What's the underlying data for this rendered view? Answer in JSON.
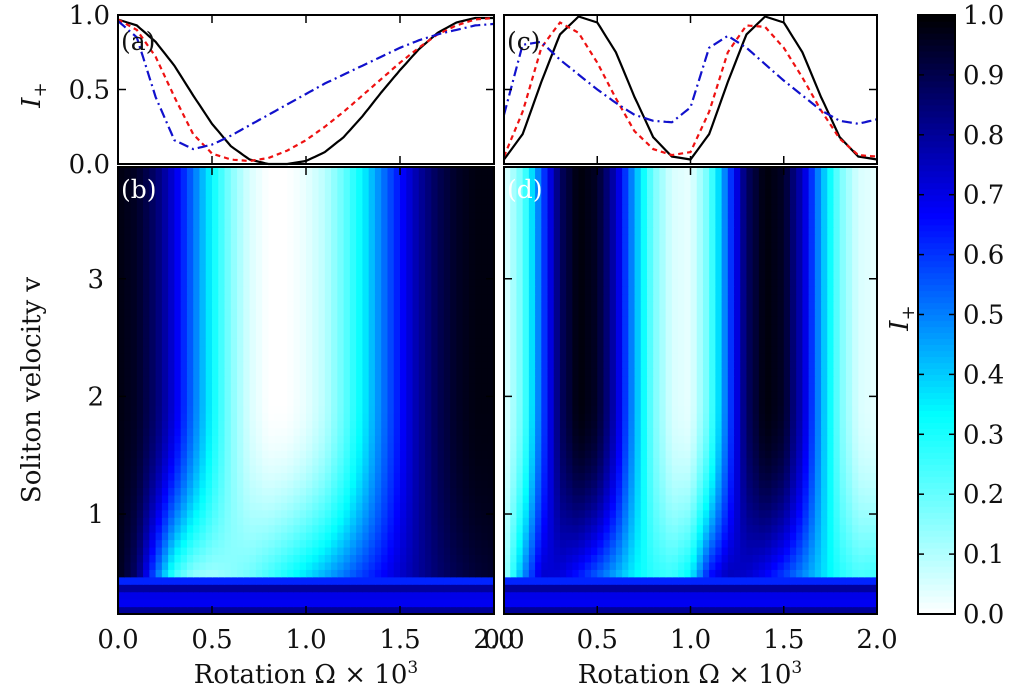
{
  "chart_data": [
    {
      "panel": "a",
      "type": "line",
      "panel_label": "(a)",
      "ylabel_main": "I",
      "ylabel_sub": "+",
      "xlim": [
        0,
        2
      ],
      "ylim": [
        0,
        1
      ],
      "yticks": [
        "0.0",
        "0.5",
        "1.0"
      ],
      "x": [
        0.0,
        0.1,
        0.2,
        0.3,
        0.4,
        0.5,
        0.6,
        0.7,
        0.8,
        0.9,
        1.0,
        1.1,
        1.2,
        1.3,
        1.4,
        1.5,
        1.6,
        1.7,
        1.8,
        1.9,
        2.0
      ],
      "series": [
        {
          "style": "solid",
          "color": "#000000",
          "values": [
            0.97,
            0.93,
            0.82,
            0.66,
            0.46,
            0.27,
            0.12,
            0.03,
            0.0,
            0.0,
            0.02,
            0.08,
            0.18,
            0.32,
            0.48,
            0.63,
            0.77,
            0.88,
            0.95,
            0.98,
            0.98
          ]
        },
        {
          "style": "dashed",
          "color": "#ee1111",
          "values": [
            0.97,
            0.9,
            0.72,
            0.45,
            0.2,
            0.07,
            0.03,
            0.02,
            0.04,
            0.09,
            0.16,
            0.25,
            0.35,
            0.46,
            0.57,
            0.68,
            0.78,
            0.87,
            0.93,
            0.97,
            0.98
          ]
        },
        {
          "style": "dashdot",
          "color": "#1111cc",
          "values": [
            0.96,
            0.85,
            0.45,
            0.16,
            0.1,
            0.13,
            0.19,
            0.26,
            0.33,
            0.4,
            0.47,
            0.54,
            0.6,
            0.66,
            0.72,
            0.78,
            0.83,
            0.87,
            0.9,
            0.93,
            0.94
          ]
        }
      ]
    },
    {
      "panel": "c",
      "type": "line",
      "panel_label": "(c)",
      "xlim": [
        0,
        2
      ],
      "ylim": [
        0,
        1
      ],
      "x": [
        0.0,
        0.1,
        0.2,
        0.3,
        0.4,
        0.5,
        0.6,
        0.7,
        0.8,
        0.9,
        1.0,
        1.1,
        1.2,
        1.3,
        1.4,
        1.5,
        1.6,
        1.7,
        1.8,
        1.9,
        2.0
      ],
      "series": [
        {
          "style": "solid",
          "color": "#000000",
          "values": [
            0.03,
            0.2,
            0.55,
            0.87,
            0.99,
            0.95,
            0.75,
            0.45,
            0.18,
            0.05,
            0.03,
            0.2,
            0.55,
            0.87,
            0.99,
            0.95,
            0.75,
            0.45,
            0.18,
            0.05,
            0.03
          ]
        },
        {
          "style": "dashed",
          "color": "#ee1111",
          "values": [
            0.05,
            0.35,
            0.78,
            0.95,
            0.88,
            0.68,
            0.44,
            0.22,
            0.1,
            0.06,
            0.08,
            0.35,
            0.75,
            0.93,
            0.92,
            0.78,
            0.58,
            0.36,
            0.17,
            0.06,
            0.05
          ]
        },
        {
          "style": "dashdot",
          "color": "#1111cc",
          "values": [
            0.33,
            0.8,
            0.82,
            0.7,
            0.6,
            0.5,
            0.41,
            0.33,
            0.29,
            0.28,
            0.38,
            0.78,
            0.86,
            0.78,
            0.67,
            0.56,
            0.46,
            0.36,
            0.29,
            0.27,
            0.3
          ]
        }
      ]
    },
    {
      "panel": "b",
      "type": "heatmap",
      "panel_label": "(b)",
      "xlabel": "Rotation Ω × 10",
      "xlabel_sup": "3",
      "ylabel": "Soliton velocity v",
      "xlim": [
        0,
        2
      ],
      "ylim": [
        0.15,
        3.95
      ],
      "xticks": [
        "0.0",
        "0.5",
        "1.0",
        "1.5",
        "2.0"
      ],
      "yticks": [
        "1",
        "2",
        "3"
      ],
      "x": [
        0.0,
        0.1,
        0.2,
        0.3,
        0.4,
        0.5,
        0.6,
        0.7,
        0.8,
        0.9,
        1.0,
        1.1,
        1.2,
        1.3,
        1.4,
        1.5,
        1.6,
        1.7,
        1.8,
        1.9,
        2.0
      ],
      "profile_high_v": [
        0.98,
        0.95,
        0.86,
        0.71,
        0.52,
        0.33,
        0.16,
        0.05,
        0.0,
        0.0,
        0.03,
        0.09,
        0.2,
        0.34,
        0.5,
        0.65,
        0.79,
        0.89,
        0.95,
        0.98,
        0.98
      ],
      "profile_low_v": [
        0.97,
        0.85,
        0.5,
        0.2,
        0.1,
        0.1,
        0.15,
        0.2,
        0.27,
        0.34,
        0.41,
        0.48,
        0.55,
        0.62,
        0.68,
        0.74,
        0.8,
        0.85,
        0.89,
        0.92,
        0.94
      ]
    },
    {
      "panel": "d",
      "type": "heatmap",
      "panel_label": "(d)",
      "xlabel": "Rotation Ω × 10",
      "xlabel_sup": "3",
      "xlim": [
        0,
        2
      ],
      "ylim": [
        0.15,
        3.95
      ],
      "xticks": [
        "0.0",
        "0.5",
        "1.0",
        "1.5",
        "2.0"
      ],
      "x": [
        0.0,
        0.1,
        0.2,
        0.3,
        0.4,
        0.5,
        0.6,
        0.7,
        0.8,
        0.9,
        1.0,
        1.1,
        1.2,
        1.3,
        1.4,
        1.5,
        1.6,
        1.7,
        1.8,
        1.9,
        2.0
      ],
      "profile_high_v": [
        0.03,
        0.2,
        0.55,
        0.87,
        0.99,
        0.95,
        0.75,
        0.45,
        0.18,
        0.05,
        0.03,
        0.2,
        0.55,
        0.87,
        0.99,
        0.95,
        0.75,
        0.45,
        0.18,
        0.05,
        0.03
      ],
      "profile_low_v": [
        0.1,
        0.5,
        0.75,
        0.7,
        0.6,
        0.5,
        0.41,
        0.33,
        0.29,
        0.28,
        0.38,
        0.7,
        0.78,
        0.72,
        0.64,
        0.55,
        0.46,
        0.38,
        0.3,
        0.26,
        0.28
      ]
    },
    {
      "panel": "colorbar",
      "type": "colorbar",
      "label_main": "I",
      "label_sub": "+",
      "range": [
        0,
        1
      ],
      "ticks": [
        "0.0",
        "0.1",
        "0.2",
        "0.3",
        "0.4",
        "0.5",
        "0.6",
        "0.7",
        "0.8",
        "0.9",
        "1.0"
      ],
      "colormap": [
        "#ffffff",
        "#00ffff",
        "#0000ff",
        "#000000"
      ]
    }
  ]
}
